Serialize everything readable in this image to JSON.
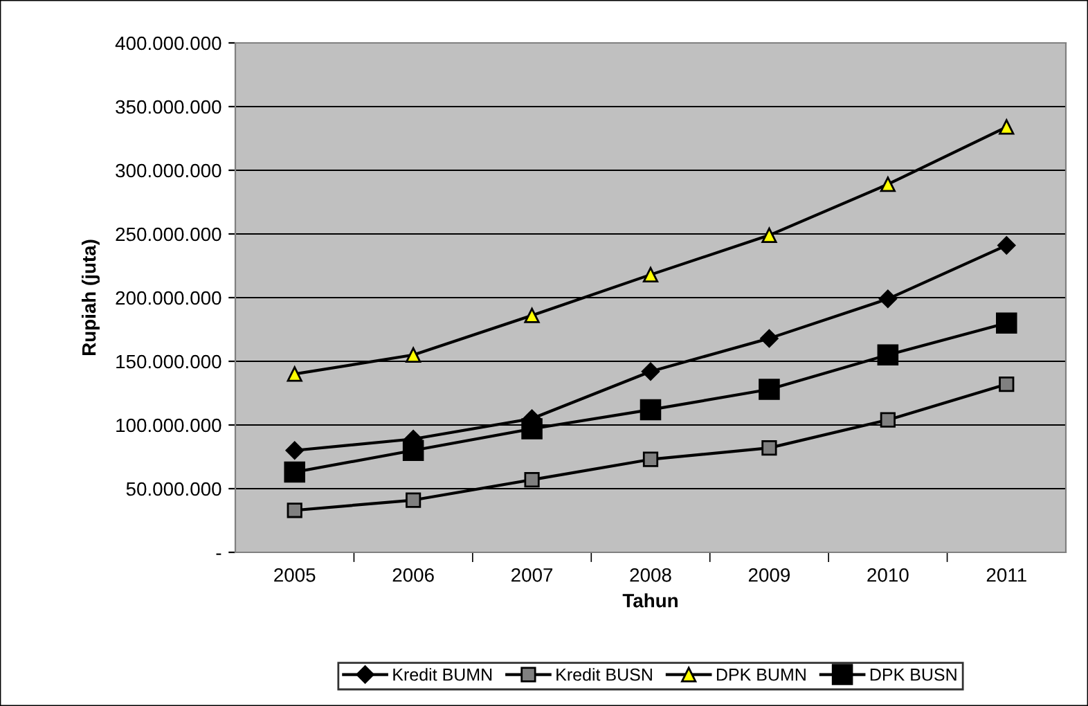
{
  "chart_data": {
    "type": "line",
    "xlabel": "Tahun",
    "ylabel": "Rupiah (juta)",
    "categories": [
      "2005",
      "2006",
      "2007",
      "2008",
      "2009",
      "2010",
      "2011"
    ],
    "series": [
      {
        "name": "Kredit BUMN",
        "color": "#000000",
        "marker": "diamond",
        "values": [
          80000000,
          89000000,
          105000000,
          142000000,
          168000000,
          199000000,
          241000000
        ]
      },
      {
        "name": "Kredit BUSN",
        "color": "#808080",
        "marker": "square",
        "values": [
          33000000,
          41000000,
          57000000,
          73000000,
          82000000,
          104000000,
          132000000
        ]
      },
      {
        "name": "DPK BUMN",
        "color": "#ffff00",
        "marker": "triangle",
        "values": [
          140000000,
          155000000,
          186000000,
          218000000,
          249000000,
          289000000,
          334000000
        ]
      },
      {
        "name": "DPK BUSN",
        "color": "#000000",
        "marker": "square",
        "values": [
          63000000,
          80000000,
          97000000,
          112000000,
          128000000,
          155000000,
          180000000
        ]
      }
    ],
    "ylim": [
      0,
      400000000
    ],
    "yticks": [
      {
        "value": 0,
        "label": "-"
      },
      {
        "value": 50000000,
        "label": "50.000.000"
      },
      {
        "value": 100000000,
        "label": "100.000.000"
      },
      {
        "value": 150000000,
        "label": "150.000.000"
      },
      {
        "value": 200000000,
        "label": "200.000.000"
      },
      {
        "value": 250000000,
        "label": "250.000.000"
      },
      {
        "value": 300000000,
        "label": "300.000.000"
      },
      {
        "value": 350000000,
        "label": "350.000.000"
      },
      {
        "value": 400000000,
        "label": "400.000.000"
      }
    ],
    "grid": "y",
    "legend": "bottom",
    "line_style": "solid"
  }
}
